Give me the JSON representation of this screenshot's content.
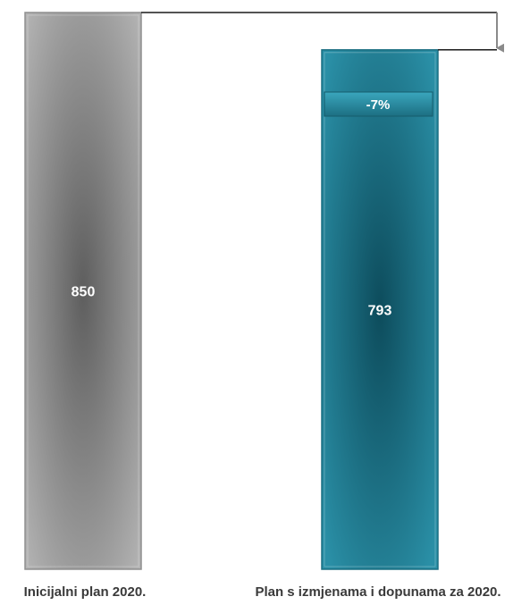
{
  "chart_data": {
    "type": "bar",
    "categories": [
      "Inicijalni plan 2020.",
      "Plan s izmjenama i dopunama za 2020."
    ],
    "values": [
      850,
      793
    ],
    "value_labels": [
      "850",
      "793"
    ],
    "change_label": "-7%",
    "ylim": [
      0,
      850
    ],
    "grid": false,
    "legend": "none"
  },
  "colors": {
    "bar1_center": "#5e5e5e",
    "bar1_edge": "#b4b4b4",
    "bar2_center": "#0d4c5c",
    "bar2_edge": "#2a8fa6",
    "badge_fill": "#2a8ba1",
    "connector": "#1a1a1a",
    "arrow": "#8a8a8a",
    "label_text": "#3a3a3a"
  }
}
